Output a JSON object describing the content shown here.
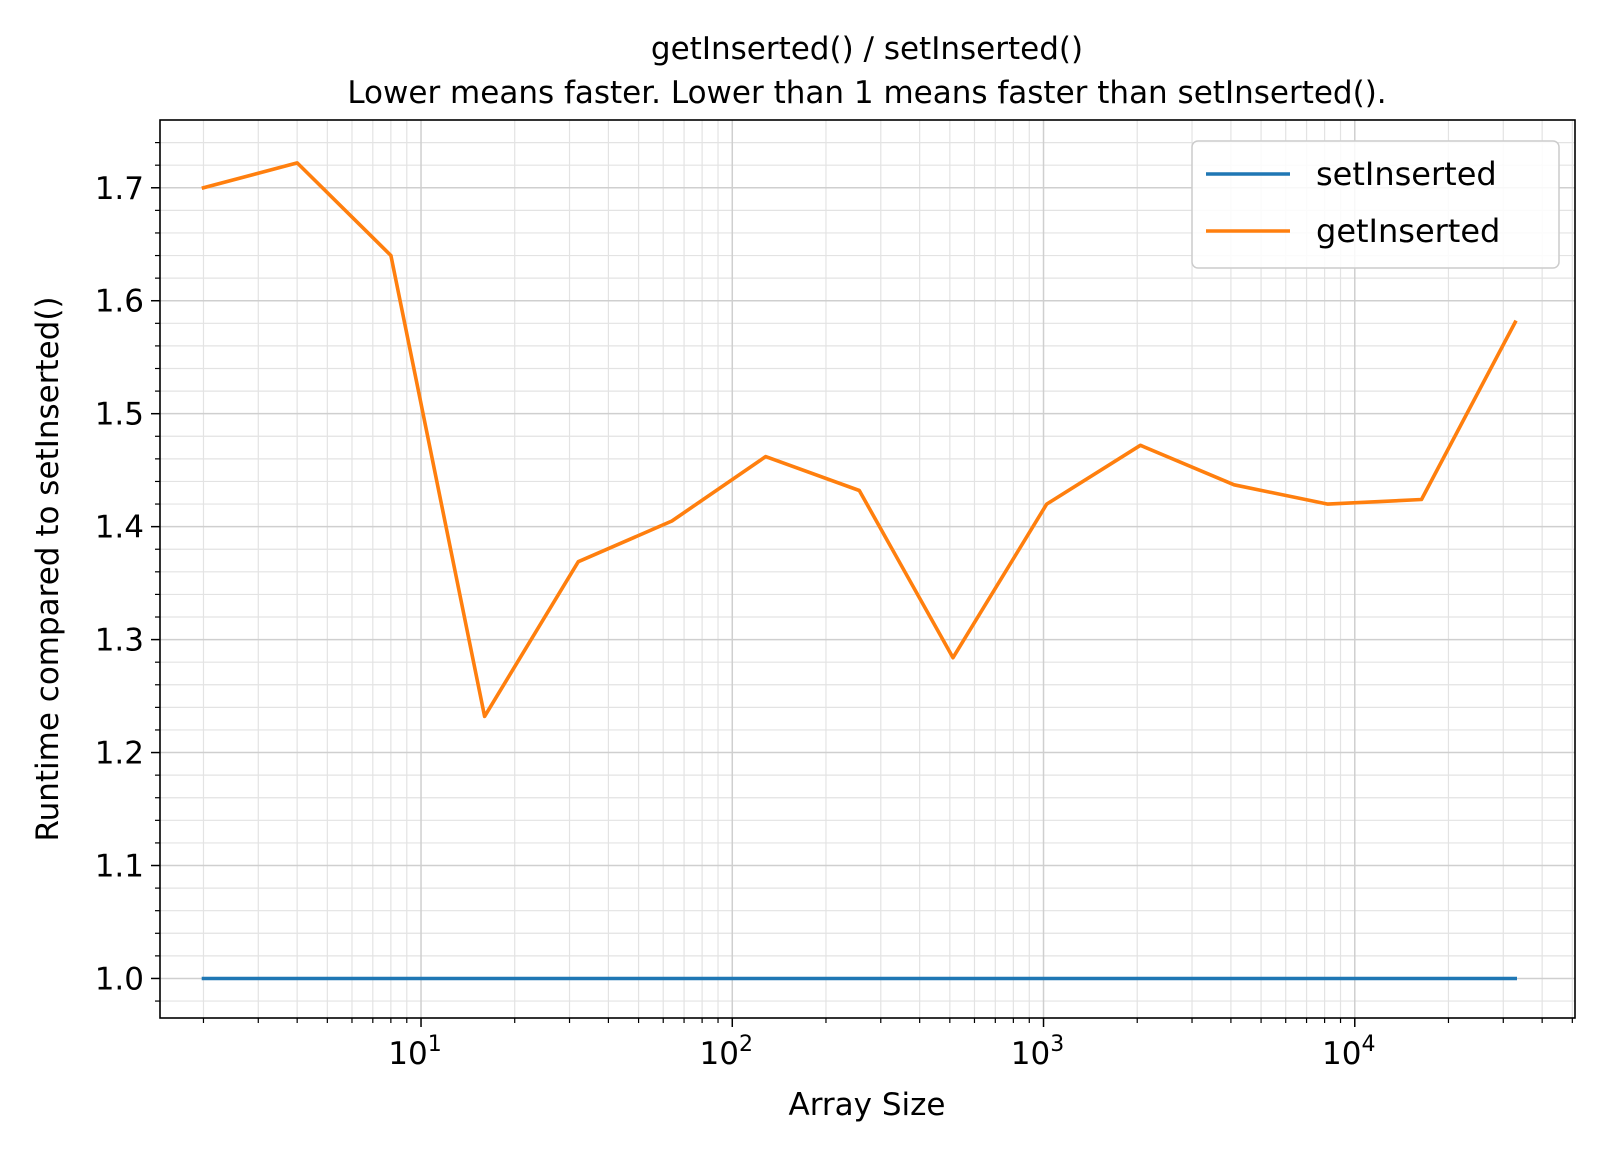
{
  "chart_data": {
    "type": "line",
    "title": "getInserted() / setInserted()",
    "subtitle": "Lower means faster. Lower than 1 means faster than setInserted().",
    "xlabel": "Array Size",
    "ylabel": "Runtime compared to setInserted()",
    "xscale": "log",
    "xlim": [
      1.45,
      51000
    ],
    "ylim": [
      0.965,
      1.76
    ],
    "x_ticks": [
      {
        "value": 10,
        "base": "10",
        "exp": "1"
      },
      {
        "value": 100,
        "base": "10",
        "exp": "2"
      },
      {
        "value": 1000,
        "base": "10",
        "exp": "3"
      },
      {
        "value": 10000,
        "base": "10",
        "exp": "4"
      }
    ],
    "y_ticks": [
      {
        "value": 1.0,
        "label": "1.0"
      },
      {
        "value": 1.1,
        "label": "1.1"
      },
      {
        "value": 1.2,
        "label": "1.2"
      },
      {
        "value": 1.3,
        "label": "1.3"
      },
      {
        "value": 1.4,
        "label": "1.4"
      },
      {
        "value": 1.5,
        "label": "1.5"
      },
      {
        "value": 1.6,
        "label": "1.6"
      },
      {
        "value": 1.7,
        "label": "1.7"
      }
    ],
    "grid": true,
    "minor_grid": true,
    "legend_position": "top-right",
    "x": [
      2,
      4,
      8,
      16,
      32,
      64,
      128,
      256,
      512,
      1024,
      2048,
      4096,
      8192,
      16384,
      32768
    ],
    "series": [
      {
        "name": "setInserted",
        "color": "#1f77b4",
        "values": [
          1.0,
          1.0,
          1.0,
          1.0,
          1.0,
          1.0,
          1.0,
          1.0,
          1.0,
          1.0,
          1.0,
          1.0,
          1.0,
          1.0,
          1.0
        ]
      },
      {
        "name": "getInserted",
        "color": "#ff7f0e",
        "values": [
          1.7,
          1.722,
          1.64,
          1.232,
          1.369,
          1.405,
          1.462,
          1.432,
          1.284,
          1.42,
          1.472,
          1.437,
          1.42,
          1.424,
          1.581
        ]
      }
    ]
  }
}
